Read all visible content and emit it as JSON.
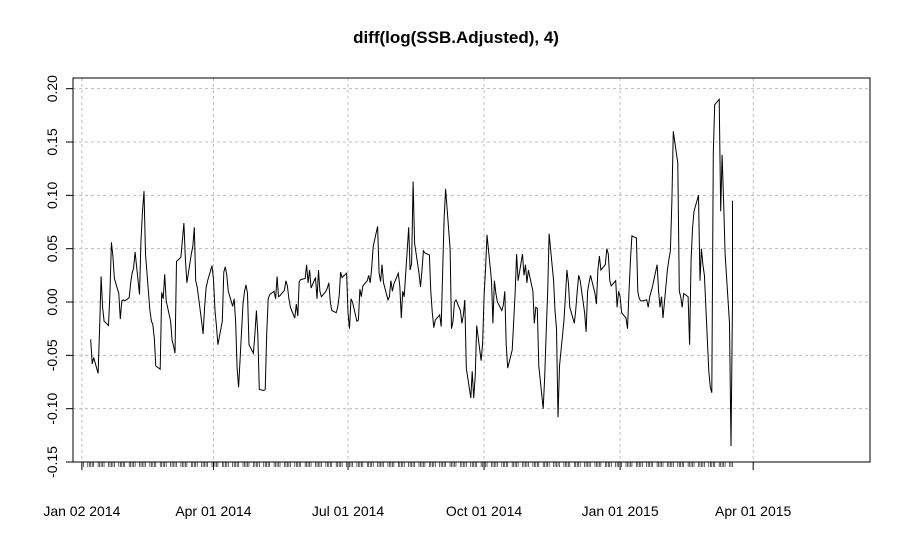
{
  "chart_data": {
    "type": "line",
    "title": "diff(log(SSB.Adjusted), 4)",
    "xlabel": "",
    "ylabel": "",
    "grid": true,
    "line_color": "#000000",
    "grid_color": "#bdbdbd",
    "ylim": [
      -0.15,
      0.21
    ],
    "xlim": [
      "2013-12-27",
      "2015-06-19"
    ],
    "y_ticks": [
      -0.15,
      -0.1,
      -0.05,
      0.0,
      0.05,
      0.1,
      0.15,
      0.2
    ],
    "y_tick_labels": [
      "-0.15",
      "-0.10",
      "-0.05",
      "0.00",
      "0.05",
      "0.10",
      "0.15",
      "0.20"
    ],
    "x_ticks": [
      "2014-01-02",
      "2014-04-01",
      "2014-07-01",
      "2014-10-01",
      "2015-01-01",
      "2015-04-01"
    ],
    "x_tick_labels": [
      "Jan 02 2014",
      "Apr 01 2014",
      "Jul 01 2014",
      "Oct 01 2014",
      "Jan 01 2015",
      "Apr 01 2015"
    ],
    "series": [
      {
        "values": [
          -0.035,
          -0.058,
          -0.052,
          -0.067,
          -0.025,
          0.024,
          -0.005,
          -0.018,
          -0.022,
          0.01,
          0.056,
          0.043,
          0.022,
          0.008,
          -0.016,
          0.001,
          0.002,
          0.001,
          0.004,
          0.018,
          0.027,
          0.032,
          0.047,
          0.007,
          0.058,
          0.085,
          0.104,
          0.045,
          -0.008,
          -0.018,
          -0.021,
          -0.034,
          -0.06,
          -0.063,
          0.009,
          0.003,
          0.026,
          0.001,
          -0.018,
          -0.036,
          -0.041,
          -0.048,
          0.038,
          0.042,
          0.058,
          0.074,
          0.04,
          0.018,
          0.045,
          0.052,
          0.07,
          0.02,
          0.014,
          -0.018,
          -0.03,
          -0.005,
          0.013,
          0.02,
          0.034,
          0.021,
          -0.008,
          -0.022,
          -0.04,
          -0.018,
          0.028,
          0.033,
          0.025,
          0.01,
          -0.004,
          0.003,
          -0.02,
          -0.062,
          -0.08,
          -0.002,
          0.01,
          0.016,
          0.008,
          -0.04,
          -0.048,
          -0.03,
          -0.008,
          -0.03,
          -0.082,
          -0.083,
          -0.082,
          -0.03,
          0.003,
          0.007,
          0.01,
          0.003,
          0.024,
          0.005,
          0.006,
          0.011,
          0.02,
          0.015,
          0.003,
          -0.005,
          -0.015,
          -0.002,
          -0.013,
          0.019,
          0.021,
          0.022,
          0.035,
          0.018,
          0.03,
          0.013,
          0.023,
          0.003,
          0.03,
          0.01,
          0.005,
          0.01,
          0.013,
          0.018,
          0.0,
          -0.008,
          -0.01,
          -0.005,
          0.006,
          0.028,
          0.023,
          0.027,
          -0.01,
          -0.025,
          0.003,
          0.0,
          -0.018,
          -0.017,
          0.012,
          0.005,
          0.015,
          0.02,
          0.025,
          0.018,
          0.032,
          0.052,
          0.071,
          0.027,
          0.019,
          0.035,
          0.018,
          0.002,
          0.005,
          0.02,
          0.01,
          0.017,
          0.027,
          0.015,
          -0.015,
          0.01,
          0.005,
          0.07,
          0.03,
          0.036,
          0.113,
          0.055,
          0.027,
          0.014,
          0.03,
          0.048,
          0.046,
          0.044,
          0.01,
          -0.01,
          -0.024,
          -0.017,
          -0.012,
          -0.023,
          0.03,
          0.078,
          0.106,
          0.05,
          -0.025,
          -0.018,
          0.0,
          0.002,
          -0.008,
          -0.02,
          -0.012,
          0.002,
          -0.062,
          -0.09,
          -0.065,
          -0.09,
          -0.07,
          -0.022,
          -0.055,
          -0.039,
          0.006,
          0.03,
          0.063,
          0.02,
          -0.02,
          0.02,
          0.008,
          0.0,
          -0.008,
          -0.003,
          0.01,
          -0.04,
          -0.062,
          -0.045,
          -0.02,
          0.008,
          0.045,
          0.02,
          0.045,
          0.025,
          0.035,
          0.018,
          0.03,
          0.01,
          -0.02,
          -0.005,
          -0.006,
          -0.06,
          -0.1,
          -0.07,
          -0.028,
          0.01,
          0.064,
          0.02,
          -0.008,
          -0.025,
          -0.108,
          -0.06,
          -0.018,
          0.005,
          0.03,
          0.018,
          -0.005,
          -0.02,
          -0.008,
          0.01,
          0.025,
          0.02,
          -0.01,
          -0.028,
          0.01,
          0.018,
          0.025,
          0.008,
          -0.002,
          0.03,
          0.043,
          0.03,
          0.035,
          0.05,
          0.045,
          0.02,
          0.015,
          0.02,
          -0.005,
          0.01,
          0.005,
          -0.01,
          -0.015,
          -0.025,
          0.01,
          0.04,
          0.062,
          0.06,
          0.01,
          0.003,
          0.001,
          0.001,
          0.002,
          -0.005,
          0.005,
          0.01,
          0.015,
          0.035,
          0.01,
          -0.005,
          0.005,
          -0.015,
          0.03,
          0.04,
          0.048,
          0.095,
          0.16,
          0.13,
          0.01,
          0.005,
          -0.005,
          0.008,
          0.005,
          -0.04,
          0.04,
          0.07,
          0.085,
          0.1,
          0.02,
          0.05,
          0.035,
          0.025,
          -0.065,
          -0.08,
          -0.085,
          0.14,
          0.185,
          0.19,
          0.085,
          0.138,
          0.095,
          0.045,
          -0.02,
          -0.135,
          0.0,
          0.01,
          0.095,
          0.088,
          0.005
        ]
      }
    ]
  }
}
